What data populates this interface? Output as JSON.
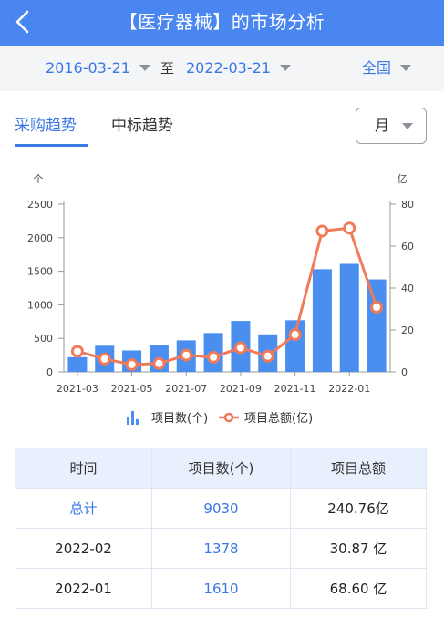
{
  "header": {
    "title": "【医疗器械】的市场分析"
  },
  "filters": {
    "start_date": "2016-03-21",
    "to_label": "至",
    "end_date": "2022-03-21",
    "region": "全国"
  },
  "tabs": [
    {
      "label": "采购趋势",
      "active": true
    },
    {
      "label": "中标趋势",
      "active": false
    }
  ],
  "period": {
    "value": "月"
  },
  "colors": {
    "accent": "#4a86f0",
    "bar": "#4a8ef0",
    "line": "#f07b5a"
  },
  "chart_data": {
    "type": "bar",
    "x": [
      "2021-03",
      "2021-04",
      "2021-05",
      "2021-06",
      "2021-07",
      "2021-08",
      "2021-09",
      "2021-10",
      "2021-11",
      "2021-12",
      "2022-01",
      "2022-02"
    ],
    "x_tick_labels": [
      "2021-03",
      "2021-05",
      "2021-07",
      "2021-09",
      "2021-11",
      "2022-01"
    ],
    "left_unit": "个",
    "right_unit": "亿",
    "y_left_ticks": [
      0,
      500,
      1000,
      1500,
      2000,
      2500
    ],
    "y_right_ticks": [
      0,
      20,
      40,
      60,
      80
    ],
    "ylim_left": [
      0,
      2500
    ],
    "ylim_right": [
      0,
      80
    ],
    "series": [
      {
        "name": "项目数(个)",
        "type": "bar",
        "axis": "left",
        "values": [
          220,
          390,
          320,
          400,
          470,
          580,
          760,
          560,
          770,
          1530,
          1610,
          1378
        ]
      },
      {
        "name": "项目总额(亿)",
        "type": "line",
        "axis": "right",
        "values": [
          9.8,
          6.2,
          3.5,
          4.0,
          8.0,
          7.0,
          11.5,
          7.5,
          17.8,
          67.2,
          68.6,
          30.87
        ]
      }
    ],
    "legend_position": "bottom"
  },
  "table": {
    "headers": [
      "时间",
      "项目数(个)",
      "项目总额"
    ],
    "rows": [
      [
        "总计",
        "9030",
        "240.76亿"
      ],
      [
        "2022-02",
        "1378",
        "30.87 亿"
      ],
      [
        "2022-01",
        "1610",
        "68.60 亿"
      ]
    ]
  }
}
